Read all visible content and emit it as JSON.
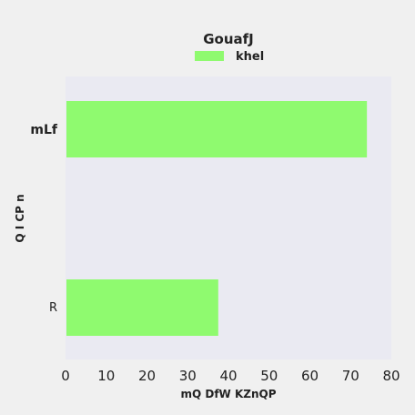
{
  "chart_data": {
    "type": "bar",
    "orientation": "horizontal",
    "title": "GouafJ",
    "xlabel": "mQ DfW KZnQP",
    "ylabel": "Q I CP n",
    "categories": [
      "mLf",
      "R"
    ],
    "series": [
      {
        "name": "khel",
        "values": [
          74,
          37.5
        ]
      }
    ],
    "xlim": [
      0,
      80
    ],
    "xticks": [
      "0",
      "10",
      "20",
      "30",
      "40",
      "50",
      "60",
      "70",
      "80"
    ],
    "grid": false,
    "legend_position": "top-center",
    "colors": {
      "bar": "#8ffa6f",
      "plot_background": "#eaeaf2",
      "figure_background": "#f0f0f0"
    }
  }
}
